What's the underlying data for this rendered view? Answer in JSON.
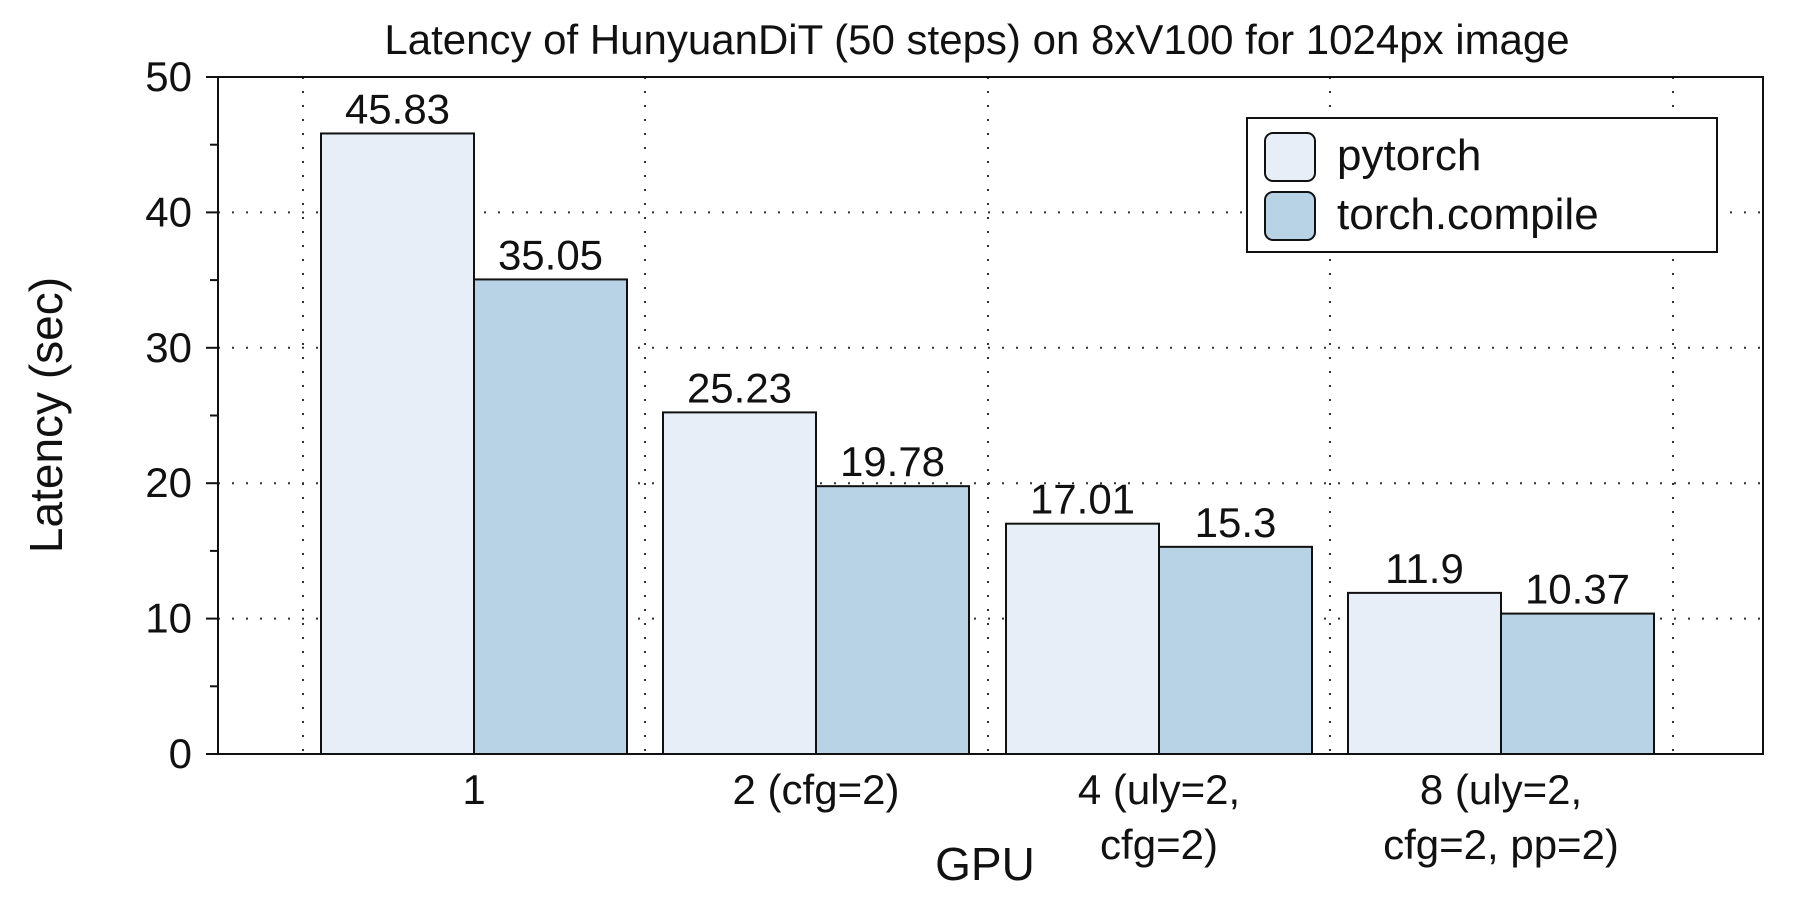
{
  "chart_data": {
    "type": "bar",
    "title": "Latency of HunyuanDiT (50 steps) on 8xV100 for 1024px image",
    "xlabel": "GPU",
    "ylabel": "Latency (sec)",
    "ylim": [
      0,
      50
    ],
    "yticks": [
      0,
      10,
      20,
      30,
      40,
      50
    ],
    "grid": true,
    "legend_position": "top-right",
    "categories": [
      [
        "1"
      ],
      [
        "2 (cfg=2)"
      ],
      [
        "4 (uly=2,",
        "cfg=2)"
      ],
      [
        "8 (uly=2,",
        "cfg=2, pp=2)"
      ]
    ],
    "series": [
      {
        "name": "pytorch",
        "color": "#e7eef8",
        "values": [
          45.83,
          25.23,
          17.01,
          11.9
        ],
        "labels": [
          "45.83",
          "25.23",
          "17.01",
          "11.9"
        ]
      },
      {
        "name": "torch.compile",
        "color": "#b8d2e6",
        "values": [
          35.05,
          19.78,
          15.3,
          10.37
        ],
        "labels": [
          "35.05",
          "19.78",
          "15.3",
          "10.37"
        ]
      }
    ]
  }
}
